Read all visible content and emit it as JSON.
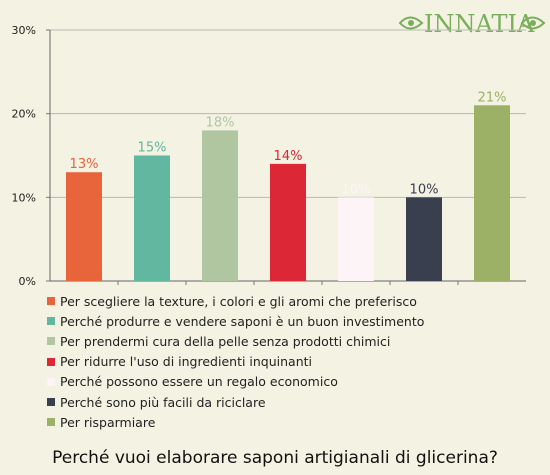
{
  "brand": {
    "logo_text": "INNATIA",
    "logo_color": "#7aae5a"
  },
  "chart_data": {
    "type": "bar",
    "title": "Perché vuoi elaborare saponi artigianali di glicerina?",
    "ylim": [
      0,
      30
    ],
    "yticks": [
      0,
      10,
      20,
      30
    ],
    "ytick_labels": [
      "0%",
      "10%",
      "20%",
      "30%"
    ],
    "grid": true,
    "legend_position": "bottom",
    "series": [
      {
        "name": "Per scegliere la texture, i colori e gli aromi che preferisco",
        "value": 13,
        "label": "13%",
        "color": "#e8643a"
      },
      {
        "name": "Perché produrre e vendere saponi è un buon investimento",
        "value": 15,
        "label": "15%",
        "color": "#62b7a0"
      },
      {
        "name": "Per prendermi cura della pelle senza prodotti chimici",
        "value": 18,
        "label": "18%",
        "color": "#afc6a1"
      },
      {
        "name": "Per ridurre l'uso di ingredienti inquinanti",
        "value": 14,
        "label": "14%",
        "color": "#dc2737"
      },
      {
        "name": "Perché possono essere un regalo economico",
        "value": 10,
        "label": "10%",
        "color": "#fdf4f8"
      },
      {
        "name": "Perché sono più facili da riciclare",
        "value": 10,
        "label": "10%",
        "color": "#3a3f50"
      },
      {
        "name": "Per risparmiare",
        "value": 21,
        "label": "21%",
        "color": "#9cb066"
      }
    ]
  }
}
